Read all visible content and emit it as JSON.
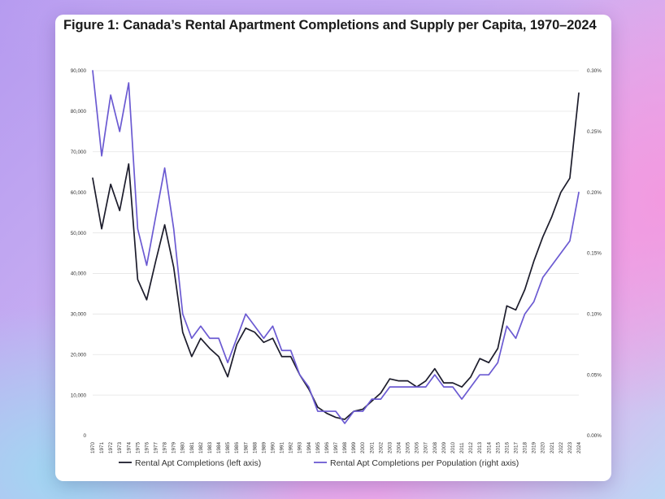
{
  "chart_data": {
    "type": "line",
    "title": "Figure 1: Canada’s Rental Apartment Completions and Supply per Capita, 1970–2024",
    "x": [
      1970,
      1971,
      1972,
      1973,
      1974,
      1975,
      1976,
      1977,
      1978,
      1979,
      1980,
      1981,
      1982,
      1983,
      1984,
      1985,
      1986,
      1987,
      1988,
      1989,
      1990,
      1991,
      1992,
      1993,
      1994,
      1995,
      1996,
      1997,
      1998,
      1999,
      2000,
      2001,
      2002,
      2003,
      2004,
      2005,
      2006,
      2007,
      2008,
      2009,
      2010,
      2011,
      2012,
      2013,
      2014,
      2015,
      2016,
      2017,
      2018,
      2019,
      2020,
      2021,
      2022,
      2023,
      2024
    ],
    "x_tick_labels": [
      "1970",
      "1971",
      "1972",
      "1973",
      "1974",
      "1975",
      "1976",
      "1977",
      "1978",
      "1979",
      "1980",
      "1981",
      "1982",
      "1983",
      "1984",
      "1985",
      "1986",
      "1987",
      "1988",
      "1989",
      "1990",
      "1991",
      "1992",
      "1993",
      "1994",
      "1995",
      "1996",
      "1997",
      "1998",
      "1999",
      "2000",
      "2001",
      "2002",
      "2003",
      "2004",
      "2005",
      "2006",
      "2007",
      "2008",
      "2009",
      "2010",
      "2011",
      "2012",
      "2013",
      "2014",
      "2015",
      "2016",
      "2017",
      "2018",
      "2019",
      "2020",
      "2021",
      "2022",
      "2023",
      "2024"
    ],
    "series": [
      {
        "name": "Rental Apt Completions (left axis)",
        "axis": "left",
        "color": "#1c1c2b",
        "values": [
          63500,
          51000,
          62000,
          55500,
          67000,
          38500,
          33500,
          43000,
          52000,
          41500,
          25500,
          19500,
          24000,
          21500,
          19500,
          14500,
          22500,
          26500,
          25500,
          23000,
          24000,
          19500,
          19500,
          15000,
          11500,
          7000,
          5500,
          4500,
          4000,
          6000,
          6500,
          8500,
          10500,
          14000,
          13500,
          13500,
          12000,
          13500,
          16500,
          13000,
          13000,
          12000,
          14500,
          19000,
          18000,
          21500,
          32000,
          31000,
          36000,
          43000,
          49000,
          54000,
          60000,
          63500,
          84500
        ]
      },
      {
        "name": "Rental Apt Completions per Population (right axis)",
        "axis": "right",
        "color": "#6b5ad2",
        "values": [
          0.3,
          0.23,
          0.28,
          0.25,
          0.29,
          0.17,
          0.14,
          0.18,
          0.22,
          0.17,
          0.1,
          0.08,
          0.09,
          0.08,
          0.08,
          0.06,
          0.08,
          0.1,
          0.09,
          0.08,
          0.09,
          0.07,
          0.07,
          0.05,
          0.04,
          0.02,
          0.02,
          0.02,
          0.01,
          0.02,
          0.02,
          0.03,
          0.03,
          0.04,
          0.04,
          0.04,
          0.04,
          0.04,
          0.05,
          0.04,
          0.04,
          0.03,
          0.04,
          0.05,
          0.05,
          0.06,
          0.09,
          0.08,
          0.1,
          0.11,
          0.13,
          0.14,
          0.15,
          0.16,
          0.2
        ]
      }
    ],
    "y_left": {
      "lim": [
        0,
        90000
      ],
      "ticks": [
        0,
        10000,
        20000,
        30000,
        40000,
        50000,
        60000,
        70000,
        80000,
        90000
      ],
      "tick_labels": [
        "0",
        "10,000",
        "20,000",
        "30,000",
        "40,000",
        "50,000",
        "60,000",
        "70,000",
        "80,000",
        "90,000"
      ]
    },
    "y_right": {
      "lim": [
        0,
        0.3
      ],
      "ticks": [
        0,
        0.05,
        0.1,
        0.15,
        0.2,
        0.25,
        0.3
      ],
      "tick_labels": [
        "0.00%",
        "0.05%",
        "0.10%",
        "0.15%",
        "0.20%",
        "0.25%",
        "0.30%"
      ]
    },
    "grid": "horizontal",
    "legend_position": "bottom-center"
  }
}
